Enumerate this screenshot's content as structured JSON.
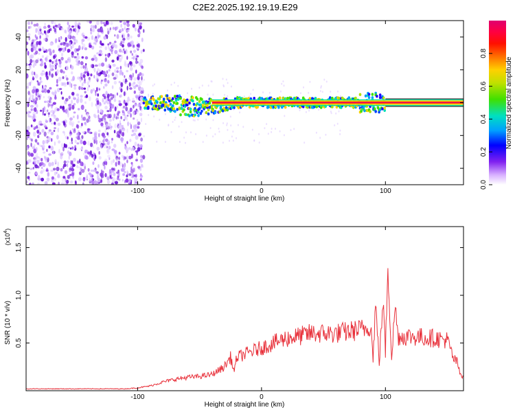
{
  "figure": {
    "title": "C2E2.2025.192.19.19.E29"
  },
  "chart_data": [
    {
      "type": "heatmap",
      "xlabel": "Height of straight line (km)",
      "ylabel": "Frequency (Hz)",
      "xlim": [
        -190,
        163
      ],
      "ylim": [
        -50,
        50
      ],
      "xticks": [
        -100,
        0,
        100
      ],
      "yticks": [
        -40,
        -20,
        0,
        20,
        40
      ],
      "colorbar": {
        "label": "Normalized spectral amplitude",
        "range": [
          0,
          1
        ],
        "ticks": [
          "0.0",
          "0.2",
          "0.4",
          "0.6",
          "0.8"
        ],
        "colors": [
          "#ffffff",
          "#c080ff",
          "#6000e0",
          "#0000ff",
          "#00b0ff",
          "#00e0a0",
          "#40e000",
          "#a0e000",
          "#ffe000",
          "#ff8000",
          "#ff2000",
          "#ff0040",
          "#e0006a"
        ]
      },
      "features": {
        "noise_region_x": [
          -190,
          -95
        ],
        "spectral_line": {
          "x_start": -95,
          "x_end": 163,
          "frequency_hz": 0
        }
      },
      "grid": false,
      "legend": "right"
    },
    {
      "type": "line",
      "xlabel": "Height of straight line (km)",
      "ylabel": "SNR (10 * v/v)",
      "y_multiplier": "(x10",
      "y_multiplier_exp": "4",
      "y_multiplier_close": ")",
      "xlim": [
        -190,
        163
      ],
      "ylim": [
        0,
        1.72
      ],
      "xticks": [
        -100,
        0,
        100
      ],
      "yticks": [
        0.5,
        1.0,
        1.5
      ],
      "color": "#e8303a",
      "grid": false,
      "x": [
        -190,
        -160,
        -130,
        -110,
        -100,
        -90,
        -80,
        -70,
        -60,
        -50,
        -40,
        -30,
        -25,
        -22,
        -20,
        -10,
        0,
        10,
        20,
        30,
        40,
        50,
        60,
        70,
        80,
        85,
        88,
        90,
        92,
        95,
        98,
        100,
        102,
        105,
        108,
        110,
        120,
        130,
        140,
        150,
        152,
        155,
        158,
        160,
        163
      ],
      "y": [
        0.02,
        0.02,
        0.02,
        0.02,
        0.03,
        0.05,
        0.09,
        0.12,
        0.14,
        0.15,
        0.17,
        0.25,
        0.35,
        0.2,
        0.35,
        0.4,
        0.45,
        0.5,
        0.55,
        0.57,
        0.6,
        0.6,
        0.6,
        0.62,
        0.64,
        0.66,
        0.7,
        0.35,
        0.9,
        0.3,
        0.95,
        0.4,
        1.35,
        0.35,
        0.9,
        0.57,
        0.57,
        0.56,
        0.55,
        0.53,
        0.45,
        0.33,
        0.3,
        0.18,
        0.15
      ]
    }
  ]
}
